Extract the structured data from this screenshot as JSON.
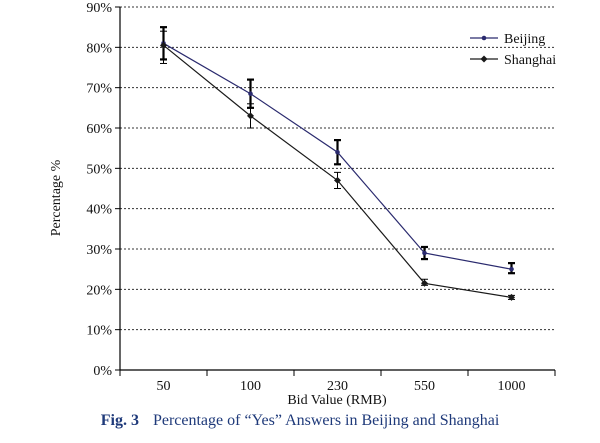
{
  "chart_data": {
    "type": "line",
    "title": "",
    "xlabel": "Bid Value (RMB)",
    "ylabel": "Percentage %",
    "categories": [
      "50",
      "100",
      "230",
      "550",
      "1000"
    ],
    "ylim": [
      0,
      90
    ],
    "yticks": [
      "0%",
      "10%",
      "20%",
      "30%",
      "40%",
      "50%",
      "60%",
      "70%",
      "80%",
      "90%"
    ],
    "grid": "horizontal dotted",
    "legend_position": "top-right",
    "series": [
      {
        "name": "Beijing",
        "color": "#2a2a6e",
        "marker": "dot",
        "values": [
          81,
          68.5,
          54,
          29,
          25
        ],
        "error_low": [
          77,
          65,
          51,
          27.5,
          24
        ],
        "error_high": [
          85,
          72,
          57,
          30.5,
          26.5
        ]
      },
      {
        "name": "Shanghai",
        "color": "#1a1a1a",
        "marker": "diamond",
        "values": [
          80.5,
          63,
          47,
          21.5,
          18
        ],
        "error_low": [
          76,
          60,
          45,
          21,
          17.5
        ],
        "error_high": [
          84,
          66,
          49,
          22.5,
          18.5
        ]
      }
    ]
  },
  "caption": {
    "fig_label": "Fig. 3",
    "text": "Percentage of “Yes” Answers in Beijing and Shanghai"
  }
}
